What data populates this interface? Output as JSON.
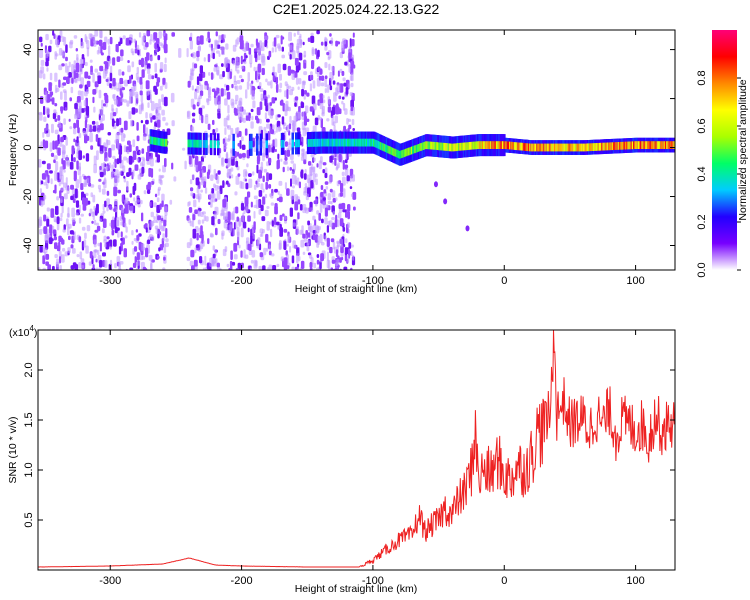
{
  "title": "C2E1.2025.024.22.13.G22",
  "chart_data": [
    {
      "type": "heatmap",
      "xlabel": "Height of straight line (km)",
      "ylabel": "Frequency (Hz)",
      "xlim": [
        -355,
        130
      ],
      "ylim": [
        -50,
        48
      ],
      "xticks": [
        -300,
        -200,
        -100,
        0,
        100
      ],
      "yticks": [
        -40,
        -20,
        0,
        20,
        40
      ],
      "colorbar": {
        "label": "Normalized spectral amplitude",
        "range": [
          0.0,
          1.0
        ],
        "ticks": [
          0.0,
          0.2,
          0.4,
          0.6,
          0.8
        ],
        "colormap": [
          "#ffffff",
          "#7700ff",
          "#2200ff",
          "#00ccff",
          "#00ff66",
          "#aaff00",
          "#ffff00",
          "#ff8800",
          "#ff0000",
          "#ff0077"
        ]
      },
      "noise_region_x": [
        -355,
        -115
      ],
      "gap_x": [
        -258,
        -242
      ],
      "signal_band": [
        {
          "x": -270,
          "freq": 3,
          "amp": 0.45
        },
        {
          "x": -260,
          "freq": 2,
          "amp": 0.5
        },
        {
          "x": -200,
          "freq": 1,
          "amp": 0.3
        },
        {
          "x": -140,
          "freq": 2,
          "amp": 0.4
        },
        {
          "x": -100,
          "freq": 2,
          "amp": 0.45
        },
        {
          "x": -80,
          "freq": -3,
          "amp": 0.55
        },
        {
          "x": -60,
          "freq": 1,
          "amp": 0.6
        },
        {
          "x": -40,
          "freq": 0,
          "amp": 0.65
        },
        {
          "x": -20,
          "freq": 1,
          "amp": 0.75
        },
        {
          "x": 0,
          "freq": 1,
          "amp": 0.85
        },
        {
          "x": 20,
          "freq": 0,
          "amp": 0.85
        },
        {
          "x": 60,
          "freq": 0,
          "amp": 0.8
        },
        {
          "x": 100,
          "freq": 1,
          "amp": 0.85
        },
        {
          "x": 125,
          "freq": 1,
          "amp": 0.85
        }
      ],
      "isolated_points": [
        {
          "x": -52,
          "freq": -15
        },
        {
          "x": -45,
          "freq": -22
        },
        {
          "x": -28,
          "freq": -33
        }
      ]
    },
    {
      "type": "line",
      "xlabel": "Height of straight line (km)",
      "ylabel": "SNR (10 * v/v)",
      "multiplier_label": "(x10",
      "multiplier_exp": "4",
      "xlim": [
        -355,
        130
      ],
      "ylim": [
        0,
        2.4
      ],
      "xticks": [
        -300,
        -200,
        -100,
        0,
        100
      ],
      "yticks": [
        0.5,
        1.0,
        1.5,
        2.0
      ],
      "color": "#ee2222",
      "x": [
        -355,
        -300,
        -260,
        -240,
        -220,
        -200,
        -150,
        -110,
        -100,
        -90,
        -80,
        -70,
        -65,
        -60,
        -55,
        -50,
        -45,
        -40,
        -35,
        -30,
        -25,
        -22,
        -20,
        -15,
        -10,
        -5,
        0,
        5,
        10,
        15,
        20,
        25,
        30,
        35,
        38,
        40,
        45,
        50,
        55,
        60,
        65,
        70,
        75,
        80,
        85,
        90,
        95,
        100,
        105,
        110,
        115,
        120,
        125,
        130
      ],
      "y": [
        0.03,
        0.04,
        0.06,
        0.12,
        0.05,
        0.04,
        0.03,
        0.03,
        0.1,
        0.2,
        0.3,
        0.35,
        0.55,
        0.38,
        0.45,
        0.5,
        0.62,
        0.55,
        0.7,
        0.78,
        1.0,
        1.45,
        0.9,
        1.0,
        0.95,
        1.1,
        0.95,
        0.9,
        1.05,
        1.0,
        1.1,
        1.35,
        1.45,
        1.55,
        2.4,
        1.55,
        1.7,
        1.45,
        1.5,
        1.5,
        1.4,
        1.55,
        1.45,
        1.6,
        1.35,
        1.5,
        1.45,
        1.4,
        1.45,
        1.3,
        1.55,
        1.4,
        1.45,
        1.5
      ]
    }
  ]
}
